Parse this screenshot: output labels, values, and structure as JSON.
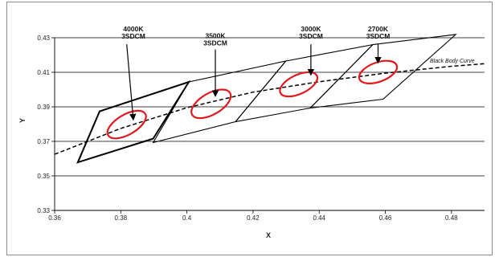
{
  "chart_data": {
    "type": "scatter",
    "xlabel": "X",
    "ylabel": "Y",
    "xlim": [
      0.36,
      0.49
    ],
    "ylim": [
      0.33,
      0.43
    ],
    "x_ticks": [
      "0.36",
      "0.38",
      "0.4",
      "0.42",
      "0.44",
      "0.46",
      "0.48"
    ],
    "y_ticks": [
      "0.33",
      "0.35",
      "0.37",
      "0.39",
      "0.41",
      "0.43"
    ],
    "grid": "horizontal",
    "black_body_curve": {
      "label": "Black Body Curve",
      "points": [
        [
          0.36,
          0.3625
        ],
        [
          0.38,
          0.3775
        ],
        [
          0.4,
          0.3895
        ],
        [
          0.42,
          0.3985
        ],
        [
          0.44,
          0.4045
        ],
        [
          0.46,
          0.4095
        ],
        [
          0.48,
          0.4135
        ],
        [
          0.49,
          0.415
        ]
      ]
    },
    "quadrangles": [
      {
        "name": "4000K",
        "bold": true,
        "points": [
          [
            0.3736,
            0.3874
          ],
          [
            0.4006,
            0.4044
          ],
          [
            0.3898,
            0.3716
          ],
          [
            0.367,
            0.3578
          ]
        ]
      },
      {
        "name": "3500K",
        "bold": false,
        "points": [
          [
            0.4006,
            0.4044
          ],
          [
            0.4299,
            0.4165
          ],
          [
            0.4147,
            0.3814
          ],
          [
            0.3898,
            0.3693
          ]
        ]
      },
      {
        "name": "3000K",
        "bold": false,
        "points": [
          [
            0.4299,
            0.4165
          ],
          [
            0.4562,
            0.426
          ],
          [
            0.4373,
            0.3893
          ],
          [
            0.4147,
            0.3814
          ]
        ]
      },
      {
        "name": "2700K",
        "bold": false,
        "points": [
          [
            0.4562,
            0.426
          ],
          [
            0.4813,
            0.4319
          ],
          [
            0.4593,
            0.3944
          ],
          [
            0.4373,
            0.3893
          ]
        ]
      }
    ],
    "ellipses": [
      {
        "name": "4000K 3SDCM",
        "center": [
          0.3818,
          0.3797
        ],
        "rx": 0.0065,
        "ry": 0.0058,
        "angle": -30
      },
      {
        "name": "3500K 3SDCM",
        "center": [
          0.4073,
          0.3917
        ],
        "rx": 0.0066,
        "ry": 0.0062,
        "angle": -30
      },
      {
        "name": "3000K 3SDCM",
        "center": [
          0.4338,
          0.403
        ],
        "rx": 0.0061,
        "ry": 0.0055,
        "angle": -25
      },
      {
        "name": "2700K 3SDCM",
        "center": [
          0.4578,
          0.4101
        ],
        "rx": 0.006,
        "ry": 0.0056,
        "angle": -20
      }
    ],
    "annotations": [
      {
        "line1": "4000K",
        "line2": "3SDCM",
        "text_at": [
          0.3838,
          0.4295
        ],
        "arrow_from": [
          0.3818,
          0.4262
        ],
        "arrow_to": [
          0.3838,
          0.3825
        ]
      },
      {
        "line1": "3500K",
        "line2": "3SDCM",
        "text_at": [
          0.4086,
          0.4255
        ],
        "arrow_from": [
          0.4086,
          0.4232
        ],
        "arrow_to": [
          0.4086,
          0.3962
        ]
      },
      {
        "line1": "3000K",
        "line2": "3SDCM",
        "text_at": [
          0.4375,
          0.4295
        ],
        "arrow_from": [
          0.4375,
          0.4262
        ],
        "arrow_to": [
          0.4375,
          0.4085
        ]
      },
      {
        "line1": "2700K",
        "line2": "3SDCM",
        "text_at": [
          0.4578,
          0.4295
        ],
        "arrow_from": [
          0.4578,
          0.4262
        ],
        "arrow_to": [
          0.4578,
          0.4155
        ]
      }
    ],
    "colors": {
      "ellipse": "#e0191e",
      "lines": "#000000",
      "grid": "#000000"
    }
  }
}
